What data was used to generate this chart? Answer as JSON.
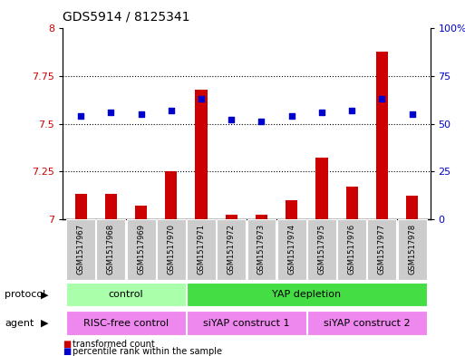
{
  "title": "GDS5914 / 8125341",
  "samples": [
    "GSM1517967",
    "GSM1517968",
    "GSM1517969",
    "GSM1517970",
    "GSM1517971",
    "GSM1517972",
    "GSM1517973",
    "GSM1517974",
    "GSM1517975",
    "GSM1517976",
    "GSM1517977",
    "GSM1517978"
  ],
  "transformed_count": [
    7.13,
    7.13,
    7.07,
    7.25,
    7.68,
    7.02,
    7.02,
    7.1,
    7.32,
    7.17,
    7.88,
    7.12
  ],
  "percentile_rank": [
    54,
    56,
    55,
    57,
    63,
    52,
    51,
    54,
    56,
    57,
    63,
    55
  ],
  "ylim_left": [
    7.0,
    8.0
  ],
  "ylim_right": [
    0,
    100
  ],
  "yticks_left": [
    7.0,
    7.25,
    7.5,
    7.75,
    8.0
  ],
  "yticks_right": [
    0,
    25,
    50,
    75,
    100
  ],
  "ytick_labels_left": [
    "7",
    "7.25",
    "7.5",
    "7.75",
    "8"
  ],
  "ytick_labels_right": [
    "0",
    "25",
    "50",
    "75",
    "100%"
  ],
  "bar_color": "#cc0000",
  "dot_color": "#0000cc",
  "bar_width": 0.4,
  "protocol_groups": [
    {
      "label": "control",
      "start": 0,
      "end": 3,
      "color": "#aaffaa"
    },
    {
      "label": "YAP depletion",
      "start": 4,
      "end": 11,
      "color": "#44dd44"
    }
  ],
  "agent_groups": [
    {
      "label": "RISC-free control",
      "start": 0,
      "end": 3,
      "color": "#ee88ee"
    },
    {
      "label": "siYAP construct 1",
      "start": 4,
      "end": 7,
      "color": "#ee88ee"
    },
    {
      "label": "siYAP construct 2",
      "start": 8,
      "end": 11,
      "color": "#ee88ee"
    }
  ],
  "legend_red_label": "transformed count",
  "legend_blue_label": "percentile rank within the sample",
  "protocol_label": "protocol",
  "agent_label": "agent",
  "background_color": "#ffffff",
  "tick_label_color_left": "#cc0000",
  "tick_label_color_right": "#0000cc",
  "label_box_color": "#cccccc",
  "title_fontsize": 10,
  "axis_fontsize": 8,
  "legend_fontsize": 8,
  "sample_fontsize": 6
}
